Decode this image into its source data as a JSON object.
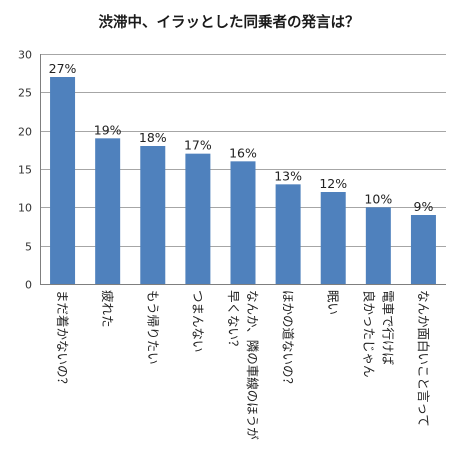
{
  "chart_data": {
    "type": "bar",
    "title": "渋滞中、イラッとした同乗者の発言は？",
    "xlabel": "",
    "ylabel": "",
    "ylim": [
      0,
      30
    ],
    "yticks": [
      0,
      5,
      10,
      15,
      20,
      25,
      30
    ],
    "grid": true,
    "legend": "none",
    "bar_color": "#4f81bd",
    "categories": [
      [
        "まだ着かないの？"
      ],
      [
        "疲れた"
      ],
      [
        "もう帰りたい"
      ],
      [
        "つまんない"
      ],
      [
        "なんか、隣の車線のほうが",
        "早くない？"
      ],
      [
        "ほかの道ないの？"
      ],
      [
        "眠い"
      ],
      [
        "電車で行けば",
        "良かったじゃん"
      ],
      [
        "なんか面白いこと言って"
      ]
    ],
    "values": [
      27,
      19,
      18,
      17,
      16,
      13,
      12,
      10,
      9
    ],
    "data_labels": [
      "27%",
      "19%",
      "18%",
      "17%",
      "16%",
      "13%",
      "12%",
      "10%",
      "9%"
    ]
  }
}
